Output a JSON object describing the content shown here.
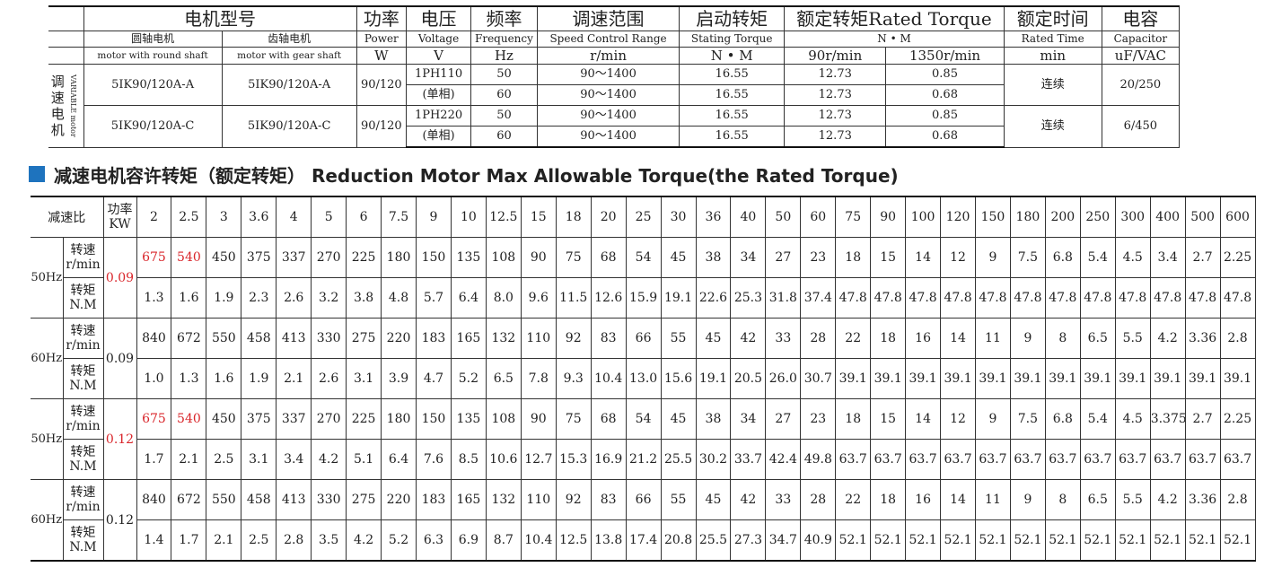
{
  "spec": {
    "h_model": "电机型号",
    "h_round": "圆轴电机",
    "h_gear": "齿轴电机",
    "h_round_en": "motor with round shaft",
    "h_gear_en": "motor with gear shaft",
    "h_power": "功率",
    "h_power_en": "Power",
    "h_power_unit": "W",
    "h_voltage": "电压",
    "h_voltage_en": "Voltage",
    "h_voltage_unit": "V",
    "h_freq": "频率",
    "h_freq_en": "Frequency",
    "h_freq_unit": "Hz",
    "h_speed": "调速范围",
    "h_speed_en": "Speed Control Range",
    "h_speed_unit": "r/min",
    "h_start": "启动转矩",
    "h_start_en": "Stating Torque",
    "h_start_unit": "N • M",
    "h_rated": "额定转矩Rated Torque",
    "h_rated_unit": "N • M",
    "h_rated_90": "90r/min",
    "h_rated_1350": "1350r/min",
    "h_time": "额定时间",
    "h_time_en": "Rated Time",
    "h_time_unit": "min",
    "h_cap": "电容",
    "h_cap_en": "Capacitor",
    "h_cap_unit": "uF/VAC",
    "side_cn": [
      "调",
      "速",
      "电",
      "机"
    ],
    "side_en": "VARIABLE motor",
    "groups": [
      {
        "round": "5IK90/120A-A",
        "gear": "5IK90/120A-A",
        "power": "90/120",
        "volt1": "1PH110",
        "volt2": "(单相)",
        "freq1": "50",
        "freq2": "60",
        "speed1": "90～1400",
        "speed2": "90～1400",
        "start1": "16.55",
        "start2": "16.55",
        "r90_1": "12.73",
        "r90_2": "12.73",
        "r1350_1": "0.85",
        "r1350_2": "0.68",
        "time": "连续",
        "cap": "20/250"
      },
      {
        "round": "5IK90/120A-C",
        "gear": "5IK90/120A-C",
        "power": "90/120",
        "volt1": "1PH220",
        "volt2": "(单相)",
        "freq1": "50",
        "freq2": "60",
        "speed1": "90～1400",
        "speed2": "90～1400",
        "start1": "16.55",
        "start2": "16.55",
        "r90_1": "12.73",
        "r90_2": "12.73",
        "r1350_1": "0.85",
        "r1350_2": "0.68",
        "time": "连续",
        "cap": "6/450"
      }
    ]
  },
  "section": {
    "title": "减速电机容许转矩（额定转矩） Reduction Motor Max Allowable Torque(the Rated Torque)",
    "marker_color": "#1e73be"
  },
  "torque": {
    "h_ratio": "减速比",
    "h_power": [
      "功率",
      "KW"
    ],
    "ratios": [
      "2",
      "2.5",
      "3",
      "3.6",
      "4",
      "5",
      "6",
      "7.5",
      "9",
      "10",
      "12.5",
      "15",
      "18",
      "20",
      "25",
      "30",
      "36",
      "40",
      "50",
      "60",
      "75",
      "90",
      "100",
      "120",
      "150",
      "180",
      "200",
      "250",
      "300",
      "400",
      "500",
      "600"
    ],
    "lbl_speed": [
      "转速",
      "r/min"
    ],
    "lbl_torque": [
      "转矩",
      "N.M"
    ],
    "blocks": [
      {
        "hz": "50Hz",
        "power": "0.09",
        "power_red": true,
        "speed": [
          "675",
          "540",
          "450",
          "375",
          "337",
          "270",
          "225",
          "180",
          "150",
          "135",
          "108",
          "90",
          "75",
          "68",
          "54",
          "45",
          "38",
          "34",
          "27",
          "23",
          "18",
          "15",
          "14",
          "12",
          "9",
          "7.5",
          "6.8",
          "5.4",
          "4.5",
          "3.4",
          "2.7",
          "2.25"
        ],
        "torque": [
          "1.3",
          "1.6",
          "1.9",
          "2.3",
          "2.6",
          "3.2",
          "3.8",
          "4.8",
          "5.7",
          "6.4",
          "8.0",
          "9.6",
          "11.5",
          "12.6",
          "15.9",
          "19.1",
          "22.6",
          "25.3",
          "31.8",
          "37.4",
          "47.8",
          "47.8",
          "47.8",
          "47.8",
          "47.8",
          "47.8",
          "47.8",
          "47.8",
          "47.8",
          "47.8",
          "47.8",
          "47.8"
        ],
        "red_speed": [
          0,
          1
        ]
      },
      {
        "hz": "60Hz",
        "power": "0.09",
        "power_red": false,
        "speed": [
          "840",
          "672",
          "550",
          "458",
          "413",
          "330",
          "275",
          "220",
          "183",
          "165",
          "132",
          "110",
          "92",
          "83",
          "66",
          "55",
          "45",
          "42",
          "33",
          "28",
          "22",
          "18",
          "16",
          "14",
          "11",
          "9",
          "8",
          "6.5",
          "5.5",
          "4.2",
          "3.36",
          "2.8"
        ],
        "torque": [
          "1.0",
          "1.3",
          "1.6",
          "1.9",
          "2.1",
          "2.6",
          "3.1",
          "3.9",
          "4.7",
          "5.2",
          "6.5",
          "7.8",
          "9.3",
          "10.4",
          "13.0",
          "15.6",
          "19.1",
          "20.5",
          "26.0",
          "30.7",
          "39.1",
          "39.1",
          "39.1",
          "39.1",
          "39.1",
          "39.1",
          "39.1",
          "39.1",
          "39.1",
          "39.1",
          "39.1",
          "39.1"
        ],
        "red_speed": []
      },
      {
        "hz": "50Hz",
        "power": "0.12",
        "power_red": true,
        "speed": [
          "675",
          "540",
          "450",
          "375",
          "337",
          "270",
          "225",
          "180",
          "150",
          "135",
          "108",
          "90",
          "75",
          "68",
          "54",
          "45",
          "38",
          "34",
          "27",
          "23",
          "18",
          "15",
          "14",
          "12",
          "9",
          "7.5",
          "6.8",
          "5.4",
          "4.5",
          "3.375",
          "2.7",
          "2.25"
        ],
        "torque": [
          "1.7",
          "2.1",
          "2.5",
          "3.1",
          "3.4",
          "4.2",
          "5.1",
          "6.4",
          "7.6",
          "8.5",
          "10.6",
          "12.7",
          "15.3",
          "16.9",
          "21.2",
          "25.5",
          "30.2",
          "33.7",
          "42.4",
          "49.8",
          "63.7",
          "63.7",
          "63.7",
          "63.7",
          "63.7",
          "63.7",
          "63.7",
          "63.7",
          "63.7",
          "63.7",
          "63.7",
          "63.7"
        ],
        "red_speed": [
          0,
          1
        ]
      },
      {
        "hz": "60Hz",
        "power": "0.12",
        "power_red": false,
        "speed": [
          "840",
          "672",
          "550",
          "458",
          "413",
          "330",
          "275",
          "220",
          "183",
          "165",
          "132",
          "110",
          "92",
          "83",
          "66",
          "55",
          "45",
          "42",
          "33",
          "28",
          "22",
          "18",
          "16",
          "14",
          "11",
          "9",
          "8",
          "6.5",
          "5.5",
          "4.2",
          "3.36",
          "2.8"
        ],
        "torque": [
          "1.4",
          "1.7",
          "2.1",
          "2.5",
          "2.8",
          "3.5",
          "4.2",
          "5.2",
          "6.3",
          "6.9",
          "8.7",
          "10.4",
          "12.5",
          "13.8",
          "17.4",
          "20.8",
          "25.5",
          "27.3",
          "34.7",
          "40.9",
          "52.1",
          "52.1",
          "52.1",
          "52.1",
          "52.1",
          "52.1",
          "52.1",
          "52.1",
          "52.1",
          "52.1",
          "52.1",
          "52.1"
        ],
        "red_speed": []
      }
    ]
  }
}
